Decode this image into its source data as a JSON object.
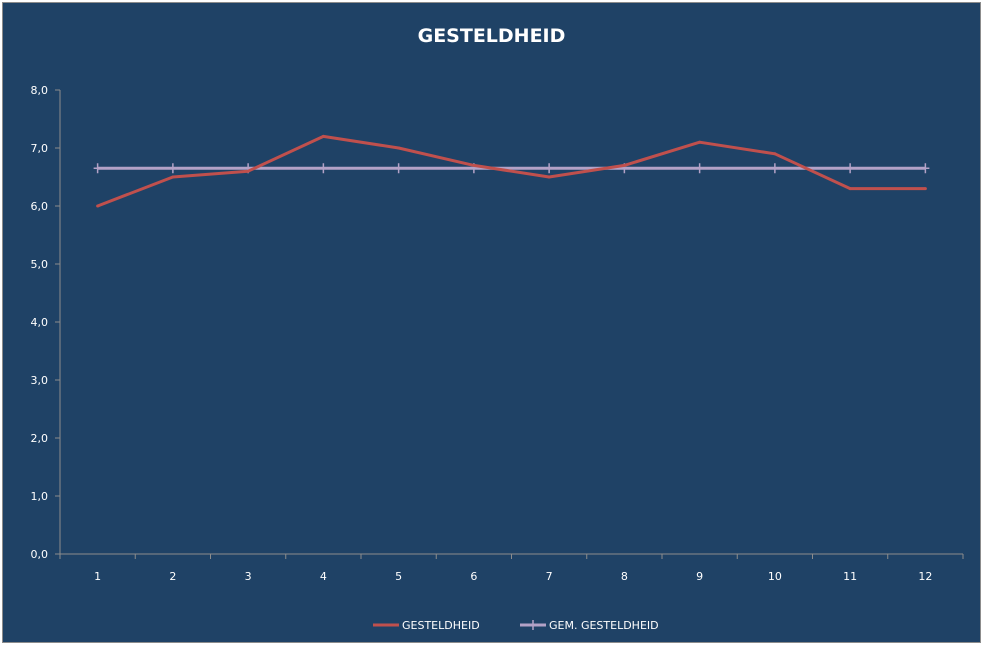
{
  "chart_data": {
    "type": "line",
    "title": "GESTELDHEID",
    "categories": [
      "1",
      "2",
      "3",
      "4",
      "5",
      "6",
      "7",
      "8",
      "9",
      "10",
      "11",
      "12"
    ],
    "y_tick_labels": [
      "0,0",
      "1,0",
      "2,0",
      "3,0",
      "4,0",
      "5,0",
      "6,0",
      "7,0",
      "8,0"
    ],
    "ylim": [
      0,
      8
    ],
    "grid": false,
    "legend_position": "bottom",
    "series": [
      {
        "name": "GESTELDHEID",
        "color": "#c0504d",
        "marker": "none",
        "values": [
          6.0,
          6.5,
          6.6,
          7.2,
          7.0,
          6.7,
          6.5,
          6.7,
          7.1,
          6.9,
          6.3,
          6.3
        ]
      },
      {
        "name": "GEM. GESTELDHEID",
        "color": "#b3a2c7",
        "marker": "plus",
        "values": [
          6.65,
          6.65,
          6.65,
          6.65,
          6.65,
          6.65,
          6.65,
          6.65,
          6.65,
          6.65,
          6.65,
          6.65
        ]
      }
    ]
  },
  "colors": {
    "background": "#1f4266",
    "axis": "#8c8c8c",
    "text": "#ffffff"
  }
}
